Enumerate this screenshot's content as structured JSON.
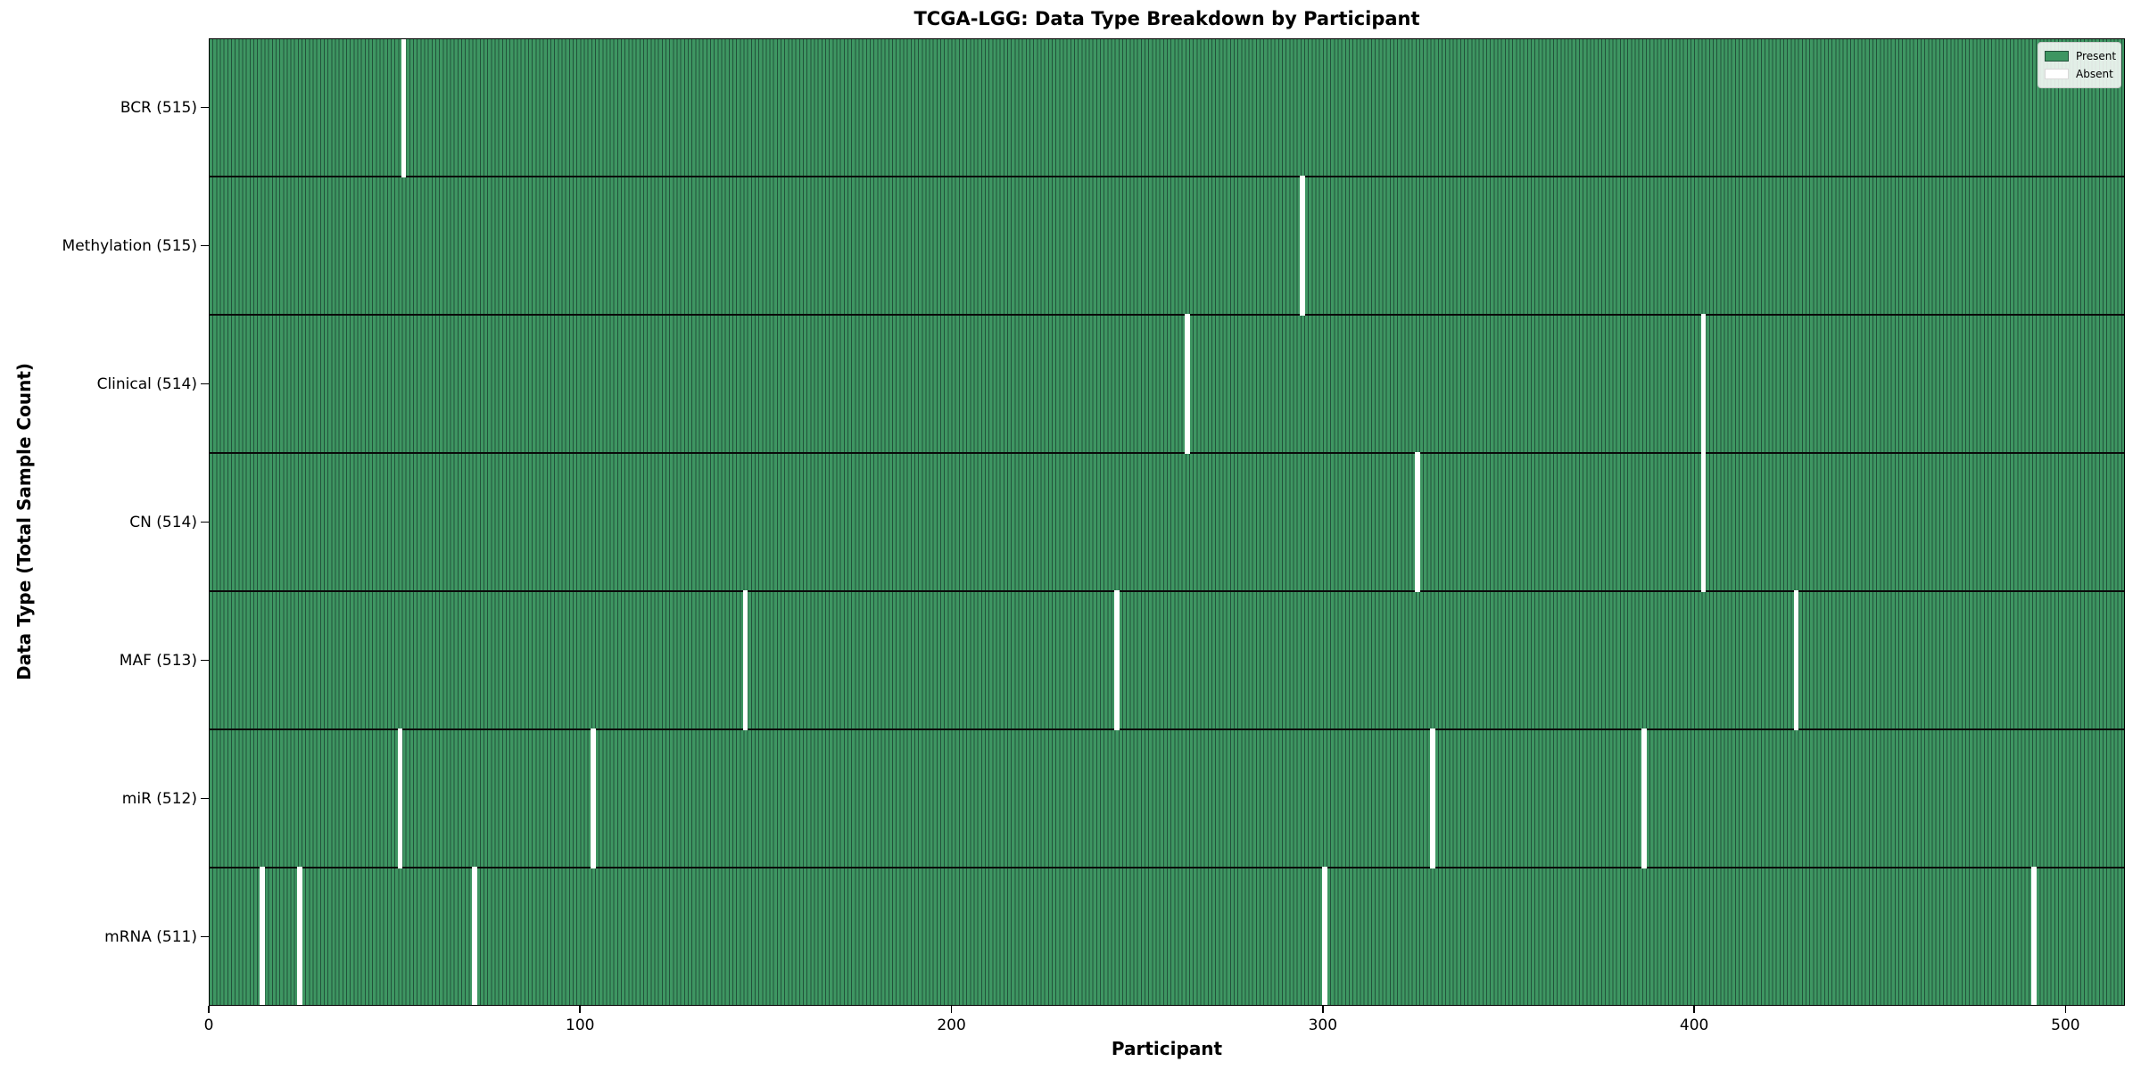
{
  "chart_data": {
    "type": "heatmap",
    "title": "TCGA-LGG: Data Type Breakdown by Participant",
    "xlabel": "Participant",
    "ylabel": "Data Type (Total Sample Count)",
    "n_participants": 516,
    "x_ticks": [
      0,
      100,
      200,
      300,
      400,
      500
    ],
    "xlim": [
      0,
      516
    ],
    "grid": false,
    "legend": {
      "position": "upper right",
      "entries": [
        {
          "label": "Present",
          "color": "#3E9662"
        },
        {
          "label": "Absent",
          "color": "#ffffff"
        }
      ]
    },
    "rows": [
      {
        "label": "BCR (515)",
        "present_count": 515,
        "absent_participants": [
          52
        ]
      },
      {
        "label": "Methylation (515)",
        "present_count": 515,
        "absent_participants": [
          294
        ]
      },
      {
        "label": "Clinical (514)",
        "present_count": 514,
        "absent_participants": [
          263,
          402
        ]
      },
      {
        "label": "CN (514)",
        "present_count": 514,
        "absent_participants": [
          325,
          402
        ]
      },
      {
        "label": "MAF (513)",
        "present_count": 513,
        "absent_participants": [
          144,
          244,
          427
        ]
      },
      {
        "label": "miR (512)",
        "present_count": 512,
        "absent_participants": [
          51,
          103,
          329,
          386
        ]
      },
      {
        "label": "mRNA (511)",
        "present_count": 511,
        "absent_participants": [
          14,
          24,
          71,
          300,
          491
        ]
      }
    ],
    "colors": {
      "present_fill": "#3E9662",
      "bar_edge": "#22523B",
      "absent_fill": "#ffffff",
      "boundary": "#0a0a0a",
      "spine": "#000000"
    }
  }
}
